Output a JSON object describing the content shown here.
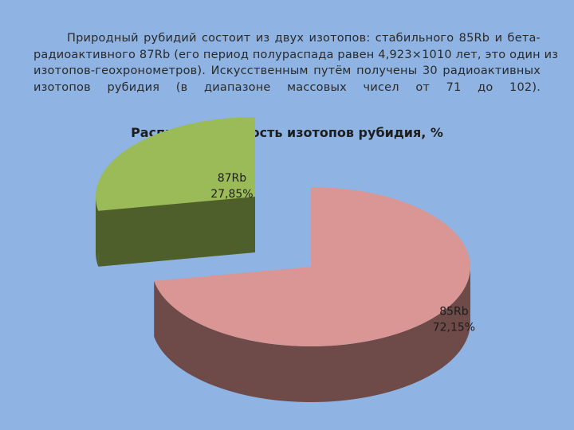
{
  "paragraph": {
    "lines": [
      "Природный рубидий состоит из двух изотопов: стабильного 85Rb и бета-",
      "радиоактивного 87Rb (его период полураспада равен 4,923×1010 лет, это один из",
      "изотопов-геохронометров). Искусственным путём получены 30 радиоактивных",
      "изотопов рубидия (в диапазоне массовых чисел от 71 до 102)."
    ]
  },
  "chart_data": {
    "type": "pie",
    "title": "Распространённость изотопов рубидия, %",
    "series": [
      {
        "name": "87Rb",
        "value": 27.85,
        "label": "27,85%",
        "color": "#9bbb59",
        "side_color": "#4e5f2b",
        "exploded": true
      },
      {
        "name": "85Rb",
        "value": 72.15,
        "label": "72,15%",
        "color": "#d99694",
        "side_color": "#6e4a49",
        "exploded": false
      }
    ]
  }
}
